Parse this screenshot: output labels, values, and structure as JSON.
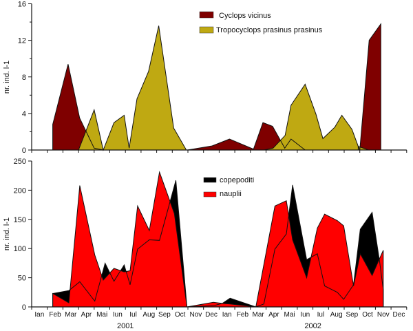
{
  "chart_data": [
    {
      "type": "area",
      "panel": "top",
      "ylabel": "nr. ind. l-1",
      "ylim": [
        0,
        16
      ],
      "yticks": [
        "0",
        "4",
        "8",
        "12",
        "16"
      ],
      "x_unit": "months since Jan 2001",
      "legend_position": "top-center",
      "series": [
        {
          "name": "Cyclops vicinus",
          "color": "#7f0000",
          "segments": [
            [
              [
                1.35,
                2.8
              ],
              [
                2.33,
                9.4
              ],
              [
                3.07,
                3.5
              ],
              [
                4.0,
                0.2
              ],
              [
                4.58,
                0
              ]
            ],
            [
              [
                9.95,
                0
              ],
              [
                10.3,
                0.1
              ],
              [
                11.55,
                0.45
              ],
              [
                12.66,
                1.2
              ],
              [
                14.2,
                0.1
              ],
              [
                14.8,
                3.0
              ],
              [
                15.42,
                2.6
              ],
              [
                16.2,
                0.2
              ],
              [
                16.6,
                1.2
              ],
              [
                17.5,
                0
              ]
            ],
            [
              [
                20.9,
                0.45
              ],
              [
                21.0,
                0
              ],
              [
                21.6,
                12.0
              ],
              [
                22.35,
                13.8
              ]
            ]
          ]
        },
        {
          "name": "Tropocyclops prasinus prasinus",
          "color": "#bfa912",
          "segments": [
            [
              [
                3.0,
                0
              ],
              [
                4.0,
                4.4
              ],
              [
                4.58,
                0
              ],
              [
                5.27,
                3.0
              ],
              [
                5.92,
                3.8
              ],
              [
                6.24,
                0.2
              ],
              [
                6.74,
                5.6
              ],
              [
                7.48,
                8.6
              ],
              [
                8.13,
                13.6
              ],
              [
                9.09,
                2.4
              ],
              [
                9.9,
                0
              ]
            ],
            [
              [
                14.86,
                0
              ],
              [
                15.45,
                0.2
              ],
              [
                16.22,
                1.6
              ],
              [
                16.6,
                4.9
              ],
              [
                17.5,
                7.2
              ],
              [
                18.2,
                3.9
              ],
              [
                18.64,
                1.25
              ],
              [
                19.4,
                2.5
              ],
              [
                19.85,
                3.8
              ],
              [
                20.5,
                2.26
              ],
              [
                20.9,
                0.4
              ],
              [
                21.57,
                0
              ]
            ]
          ]
        }
      ]
    },
    {
      "type": "area",
      "panel": "bottom",
      "ylabel": "nr. ind. l-1",
      "ylim": [
        0,
        250
      ],
      "yticks": [
        "0",
        "50",
        "100",
        "150",
        "200",
        "250"
      ],
      "x_unit": "months since Jan 2001",
      "legend_position": "top-center",
      "months": [
        "Ian",
        "Feb",
        "Mar",
        "Apr",
        "Mai",
        "Iun",
        "Iul",
        "Aug",
        "Sep",
        "Oct",
        "Nov",
        "Dec",
        "Ian",
        "Feb",
        "Mar",
        "Apr",
        "Mai",
        "Iun",
        "Iul",
        "Aug",
        "Sep",
        "Oct",
        "Nov",
        "Dec"
      ],
      "years": [
        "2001",
        "2002"
      ],
      "series": [
        {
          "name": "copepoditi",
          "color": "#000000",
          "segments": [
            [
              [
                1.35,
                23
              ],
              [
                2.38,
                28
              ],
              [
                3.08,
                43
              ],
              [
                4.04,
                10
              ],
              [
                4.7,
                75
              ],
              [
                5.27,
                44
              ],
              [
                5.92,
                72
              ],
              [
                6.3,
                38
              ],
              [
                6.78,
                99
              ],
              [
                7.53,
                115
              ],
              [
                8.18,
                114
              ],
              [
                9.23,
                217
              ],
              [
                9.94,
                0
              ],
              [
                11.63,
                2
              ],
              [
                12.2,
                6
              ],
              [
                12.7,
                15
              ],
              [
                14.35,
                0
              ],
              [
                14.86,
                5
              ],
              [
                15.57,
                99
              ],
              [
                16.3,
                125
              ],
              [
                16.7,
                209
              ],
              [
                17.6,
                81
              ],
              [
                18.28,
                91
              ],
              [
                18.75,
                36
              ],
              [
                19.56,
                25
              ],
              [
                19.97,
                13
              ],
              [
                20.6,
                38
              ],
              [
                21.03,
                133
              ],
              [
                21.79,
                162
              ],
              [
                22.25,
                81
              ],
              [
                22.5,
                30
              ],
              [
                22.5,
                0
              ]
            ]
          ]
        },
        {
          "name": "nauplii",
          "color": "#ff0000",
          "segments": [
            [
              [
                1.35,
                23
              ],
              [
                2.38,
                7
              ],
              [
                3.08,
                208
              ],
              [
                4.04,
                89
              ],
              [
                4.58,
                46
              ],
              [
                5.27,
                66
              ],
              [
                5.92,
                60
              ],
              [
                6.3,
                62
              ],
              [
                6.78,
                173
              ],
              [
                7.53,
                131
              ],
              [
                8.18,
                231
              ],
              [
                9.13,
                160
              ],
              [
                9.94,
                0
              ],
              [
                11.63,
                8
              ],
              [
                12.2,
                6
              ],
              [
                12.7,
                5
              ],
              [
                14.35,
                0
              ],
              [
                15.57,
                173
              ],
              [
                16.3,
                182
              ],
              [
                16.7,
                115
              ],
              [
                17.6,
                50
              ],
              [
                18.28,
                135
              ],
              [
                18.75,
                159
              ],
              [
                19.56,
                148
              ],
              [
                19.97,
                139
              ],
              [
                20.6,
                36
              ],
              [
                21.03,
                91
              ],
              [
                21.79,
                54
              ],
              [
                22.5,
                97
              ],
              [
                22.5,
                0
              ]
            ]
          ]
        }
      ]
    }
  ]
}
